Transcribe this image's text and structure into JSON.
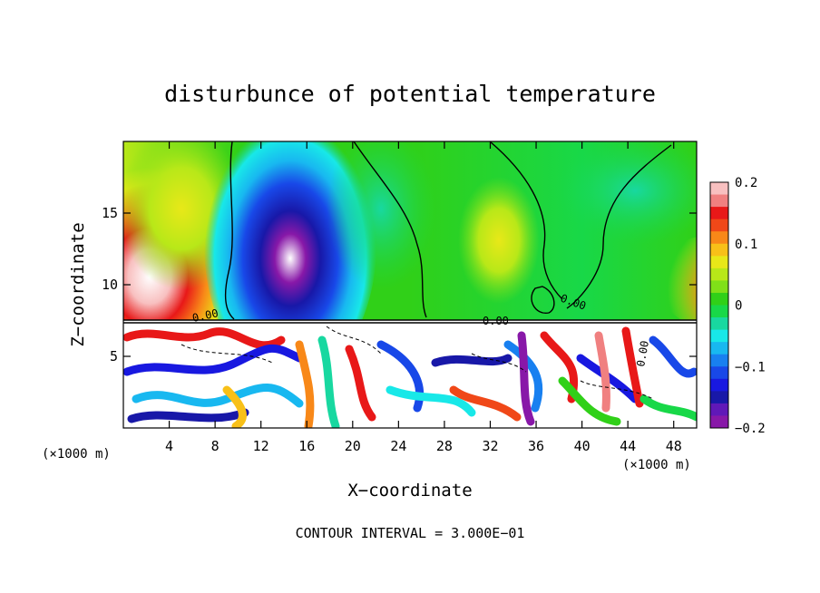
{
  "chart_data": {
    "type": "heatmap",
    "title": "disturbunce of potential temperature",
    "xlabel": "X−coordinate",
    "ylabel": "Z−coordinate",
    "x_unit_label_left": "(×1000 m)",
    "x_unit_label_right": "(×1000 m)",
    "footer": "CONTOUR INTERVAL = 3.000E−01",
    "xlim": [
      0,
      50
    ],
    "ylim": [
      0,
      20
    ],
    "x_ticks": [
      4,
      8,
      12,
      16,
      20,
      24,
      28,
      32,
      36,
      40,
      44,
      48
    ],
    "y_ticks": [
      5,
      10,
      15
    ],
    "colorbar": {
      "range": [
        -0.2,
        0.2
      ],
      "tick_values": [
        0.2,
        0.1,
        0,
        -0.1,
        -0.2
      ],
      "tick_labels": [
        "0.2",
        "0.1",
        "0",
        "−0.1",
        "−0.2"
      ],
      "colors": [
        "#f8c0c0",
        "#f08080",
        "#e81818",
        "#f04818",
        "#f88818",
        "#f8c018",
        "#e8e818",
        "#b8e818",
        "#80e018",
        "#30d018",
        "#18d848",
        "#18d8a0",
        "#18e8e8",
        "#18b8f0",
        "#1880f0",
        "#1848e8",
        "#1818e0",
        "#1818a8",
        "#6018b8",
        "#8818a8"
      ]
    },
    "contour_labels": [
      "0.00",
      "0.00",
      "0.00",
      "0.00"
    ],
    "upper_layer_anomalies": [
      {
        "x": 2.5,
        "z": 11,
        "value": 0.2
      },
      {
        "x": 15,
        "z": 10,
        "value": -0.2
      },
      {
        "x": 49.5,
        "z": 9.5,
        "value": 0.15
      },
      {
        "x": 32.5,
        "z": 13,
        "value": 0.05
      }
    ]
  }
}
